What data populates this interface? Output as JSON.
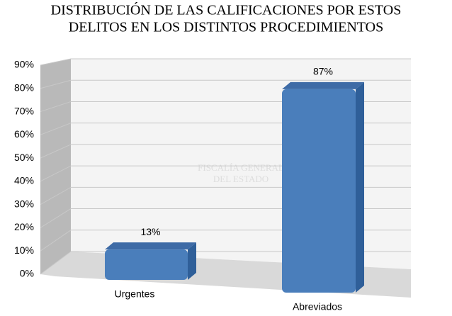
{
  "chart_data": {
    "type": "bar3d",
    "title": [
      "DISTRIBUCIÓN DE LAS CALIFICACIONES POR ESTOS",
      "DELITOS EN LOS DISTINTOS PROCEDIMIENTOS"
    ],
    "watermark": [
      "FISCALÍA GENERAL",
      "DEL ESTADO"
    ],
    "categories": [
      "Urgentes",
      "Abreviados"
    ],
    "values": [
      13,
      87
    ],
    "value_labels": [
      "13%",
      "87%"
    ],
    "color": "#4a7ebb",
    "ylim": [
      0,
      90
    ],
    "yticks": [
      {
        "value": 0,
        "label": "0%"
      },
      {
        "value": 10,
        "label": "10%"
      },
      {
        "value": 20,
        "label": "20%"
      },
      {
        "value": 30,
        "label": "30%"
      },
      {
        "value": 40,
        "label": "40%"
      },
      {
        "value": 50,
        "label": "50%"
      },
      {
        "value": 60,
        "label": "60%"
      },
      {
        "value": 70,
        "label": "70%"
      },
      {
        "value": 80,
        "label": "80%"
      },
      {
        "value": 90,
        "label": "90%"
      }
    ],
    "grid": true
  }
}
